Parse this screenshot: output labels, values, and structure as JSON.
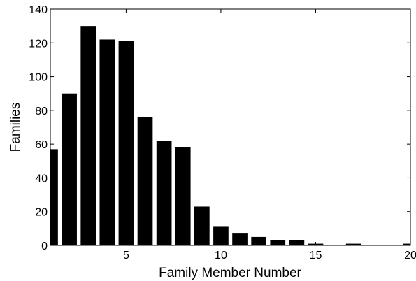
{
  "chart_data": {
    "type": "bar",
    "xlabel": "Family Member Number",
    "ylabel": "Families",
    "xlim": [
      1,
      20
    ],
    "ylim": [
      0,
      140
    ],
    "x_ticks": [
      5,
      10,
      15,
      20
    ],
    "y_ticks": [
      0,
      20,
      40,
      60,
      80,
      100,
      120,
      140
    ],
    "grid": false,
    "bar_color": "#000000",
    "categories": [
      1,
      2,
      3,
      4,
      5,
      6,
      7,
      8,
      9,
      10,
      11,
      12,
      13,
      14,
      15,
      16,
      17,
      18,
      19,
      20
    ],
    "values": [
      57,
      90,
      130,
      122,
      121,
      76,
      62,
      58,
      23,
      11,
      7,
      5,
      3,
      3,
      1,
      0,
      1,
      0,
      0,
      1
    ]
  }
}
